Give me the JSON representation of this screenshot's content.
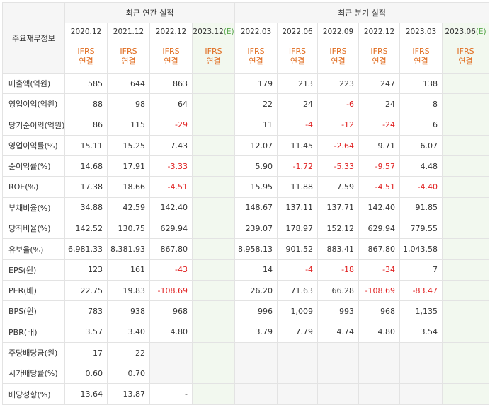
{
  "header": {
    "row_label": "주요재무정보",
    "annual_title": "최근 연간 실적",
    "quarterly_title": "최근 분기 실적",
    "estimate_mark": "(E)",
    "ifrs_line1": "IFRS",
    "ifrs_line2": "연결",
    "annual_periods": [
      "2020.12",
      "2021.12",
      "2022.12",
      "2023.12"
    ],
    "quarterly_periods": [
      "2022.03",
      "2022.06",
      "2022.09",
      "2022.12",
      "2023.03",
      "2023.06"
    ]
  },
  "rows": [
    {
      "label": "매출액(억원)",
      "values": [
        "585",
        "644",
        "863",
        "",
        "179",
        "213",
        "223",
        "247",
        "138",
        ""
      ]
    },
    {
      "label": "영업이익(억원)",
      "values": [
        "88",
        "98",
        "64",
        "",
        "22",
        "24",
        "-6",
        "24",
        "8",
        ""
      ]
    },
    {
      "label": "당기순이익(억원)",
      "values": [
        "86",
        "115",
        "-29",
        "",
        "11",
        "-4",
        "-12",
        "-24",
        "6",
        ""
      ]
    },
    {
      "label": "영업이익률(%)",
      "values": [
        "15.11",
        "15.25",
        "7.43",
        "",
        "12.07",
        "11.45",
        "-2.64",
        "9.71",
        "6.07",
        ""
      ]
    },
    {
      "label": "순이익률(%)",
      "values": [
        "14.68",
        "17.91",
        "-3.33",
        "",
        "5.90",
        "-1.72",
        "-5.33",
        "-9.57",
        "4.48",
        ""
      ]
    },
    {
      "label": "ROE(%)",
      "values": [
        "17.38",
        "18.66",
        "-4.51",
        "",
        "15.95",
        "11.88",
        "7.59",
        "-4.51",
        "-4.40",
        ""
      ]
    },
    {
      "label": "부채비율(%)",
      "values": [
        "34.88",
        "42.59",
        "142.40",
        "",
        "148.67",
        "137.11",
        "137.71",
        "142.40",
        "91.85",
        ""
      ]
    },
    {
      "label": "당좌비율(%)",
      "values": [
        "142.52",
        "130.75",
        "629.94",
        "",
        "239.07",
        "178.97",
        "152.12",
        "629.94",
        "779.55",
        ""
      ]
    },
    {
      "label": "유보율(%)",
      "values": [
        "6,981.33",
        "8,381.93",
        "867.80",
        "",
        "8,958.13",
        "901.52",
        "883.41",
        "867.80",
        "1,043.58",
        ""
      ]
    },
    {
      "label": "EPS(원)",
      "values": [
        "123",
        "161",
        "-43",
        "",
        "14",
        "-4",
        "-18",
        "-34",
        "7",
        ""
      ]
    },
    {
      "label": "PER(배)",
      "values": [
        "22.75",
        "19.83",
        "-108.69",
        "",
        "26.20",
        "71.63",
        "66.28",
        "-108.69",
        "-83.47",
        ""
      ]
    },
    {
      "label": "BPS(원)",
      "values": [
        "783",
        "938",
        "968",
        "",
        "996",
        "1,009",
        "993",
        "968",
        "1,135",
        ""
      ]
    },
    {
      "label": "PBR(배)",
      "values": [
        "3.57",
        "3.40",
        "4.80",
        "",
        "3.79",
        "7.79",
        "4.74",
        "4.80",
        "3.54",
        ""
      ]
    },
    {
      "label": "주당배당금(원)",
      "values": [
        "17",
        "22",
        "",
        "",
        "",
        "",
        "",
        "",
        "",
        ""
      ]
    },
    {
      "label": "시가배당률(%)",
      "values": [
        "0.60",
        "0.70",
        "",
        "",
        "",
        "",
        "",
        "",
        "",
        ""
      ]
    },
    {
      "label": "배당성향(%)",
      "values": [
        "13.64",
        "13.87",
        "-",
        "",
        "",
        "",
        "",
        "",
        "",
        ""
      ]
    }
  ],
  "colors": {
    "ifrs": "#e06c1f",
    "negative": "#e02020",
    "estimate_bg": "#f2f8ef",
    "estimate_mark": "#56a64a",
    "header_bg": "#f6f6f6"
  }
}
